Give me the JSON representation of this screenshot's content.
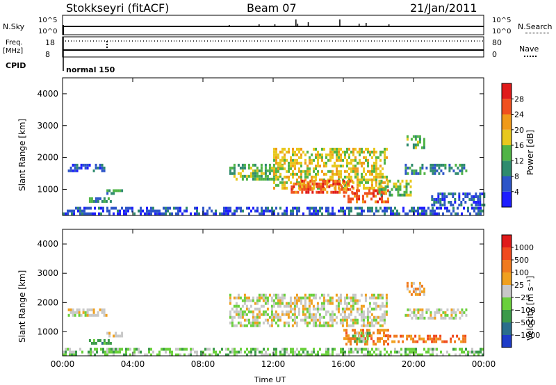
{
  "header": {
    "station": "Stokkseyri (fitACF)",
    "beam": "Beam 07",
    "date": "21/Jan/2011"
  },
  "top_panels": {
    "nsky_label": "N.Sky",
    "nsearch_label": "N.Search",
    "nsky_ticks": [
      "10^5",
      "10^0"
    ],
    "nsearch_ticks": [
      "10^5",
      "10^0"
    ],
    "freq_label": "Freq.",
    "freq_unit": "[MHz]",
    "freq_ticks": [
      "18",
      "8"
    ],
    "nave_label": "Nave",
    "nave_ticks": [
      "80",
      "0"
    ],
    "cpid_label": "CPID",
    "cpid_value": "normal 150"
  },
  "chart_data": [
    {
      "type": "heatmap",
      "name": "power",
      "ylabel": "Slant Range [km]",
      "xlabel": "Time UT",
      "x_ticks": [
        "00:00",
        "04:00",
        "08:00",
        "12:00",
        "16:00",
        "20:00",
        "00:00"
      ],
      "y_ticks": [
        "1000",
        "2000",
        "3000",
        "4000"
      ],
      "xlim": [
        0,
        24
      ],
      "ylim": [
        180,
        4500
      ],
      "colorbar": {
        "label": "Power [dB]",
        "ticks": [
          "4",
          "8",
          "12",
          "16",
          "20",
          "24",
          "28"
        ],
        "colors": [
          "#1e1eff",
          "#2d55c8",
          "#2f8b6e",
          "#50b446",
          "#e8c81e",
          "#f09a1a",
          "#f0501e",
          "#e01a1a"
        ]
      },
      "regions": [
        {
          "x0": 0.3,
          "x1": 2.5,
          "y0": 1550,
          "y1": 1800,
          "level": 1
        },
        {
          "x0": 1.5,
          "x1": 2.8,
          "y0": 600,
          "y1": 750,
          "level": 2
        },
        {
          "x0": 2.5,
          "x1": 3.4,
          "y0": 900,
          "y1": 1000,
          "level": 2
        },
        {
          "x0": 0.0,
          "x1": 24.0,
          "y0": 200,
          "y1": 450,
          "level": 1
        },
        {
          "x0": 9.5,
          "x1": 12.5,
          "y0": 1300,
          "y1": 1800,
          "level": 3
        },
        {
          "x0": 12.0,
          "x1": 18.5,
          "y0": 1000,
          "y1": 2300,
          "level": 4
        },
        {
          "x0": 13.0,
          "x1": 16.5,
          "y0": 900,
          "y1": 1300,
          "level": 6
        },
        {
          "x0": 16.0,
          "x1": 18.5,
          "y0": 600,
          "y1": 1000,
          "level": 6
        },
        {
          "x0": 18.0,
          "x1": 19.8,
          "y0": 800,
          "y1": 1300,
          "level": 3
        },
        {
          "x0": 19.5,
          "x1": 23.0,
          "y0": 1500,
          "y1": 1800,
          "level": 2
        },
        {
          "x0": 19.6,
          "x1": 20.6,
          "y0": 2300,
          "y1": 2700,
          "level": 3
        },
        {
          "x0": 21.0,
          "x1": 24.0,
          "y0": 500,
          "y1": 900,
          "level": 1
        }
      ]
    },
    {
      "type": "heatmap",
      "name": "velocity",
      "ylabel": "Slant Range [km]",
      "xlabel": "Time UT",
      "x_ticks": [
        "00:00",
        "04:00",
        "08:00",
        "12:00",
        "16:00",
        "20:00",
        "00:00"
      ],
      "y_ticks": [
        "1000",
        "2000",
        "3000",
        "4000"
      ],
      "xlim": [
        0,
        24
      ],
      "ylim": [
        180,
        4500
      ],
      "colorbar": {
        "label": "Velocity [m s⁻¹]",
        "ticks": [
          "1000",
          "500",
          "100",
          "25",
          "−25",
          "−100",
          "−500",
          "−1000"
        ],
        "colors": [
          "#1e3cc8",
          "#2a6e8c",
          "#3c9a4a",
          "#6ad03c",
          "#c8c8c8",
          "#f0a01e",
          "#f07a1e",
          "#f04a1e",
          "#e01a1a"
        ]
      },
      "regions": [
        {
          "x0": 0.3,
          "x1": 2.5,
          "y0": 1550,
          "y1": 1800,
          "level": 4
        },
        {
          "x0": 1.5,
          "x1": 2.8,
          "y0": 600,
          "y1": 750,
          "level": 2
        },
        {
          "x0": 2.5,
          "x1": 3.4,
          "y0": 900,
          "y1": 1000,
          "level": 4
        },
        {
          "x0": 0.0,
          "x1": 24.0,
          "y0": 200,
          "y1": 450,
          "level": 3
        },
        {
          "x0": 9.5,
          "x1": 18.5,
          "y0": 1200,
          "y1": 2300,
          "level": 4
        },
        {
          "x0": 16.0,
          "x1": 18.5,
          "y0": 600,
          "y1": 1100,
          "level": 6
        },
        {
          "x0": 16.5,
          "x1": 17.5,
          "y0": 650,
          "y1": 1000,
          "level": 3
        },
        {
          "x0": 18.5,
          "x1": 23.0,
          "y0": 650,
          "y1": 900,
          "level": 6
        },
        {
          "x0": 19.5,
          "x1": 23.0,
          "y0": 1500,
          "y1": 1800,
          "level": 4
        },
        {
          "x0": 19.6,
          "x1": 20.6,
          "y0": 2300,
          "y1": 2700,
          "level": 5
        }
      ]
    }
  ]
}
